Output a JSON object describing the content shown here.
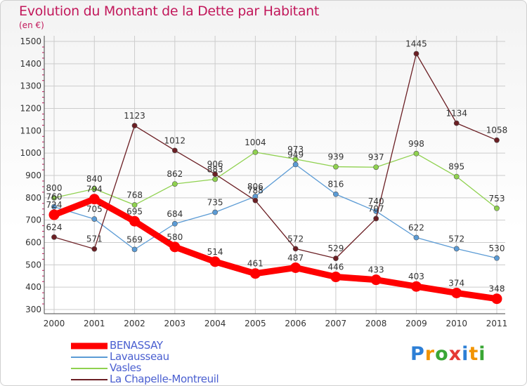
{
  "title": "Evolution du Montant de la Dette par Habitant",
  "subtitle": "(en €)",
  "logo": "Proxiti",
  "chart_data": {
    "type": "line",
    "categories": [
      "2000",
      "2001",
      "2002",
      "2003",
      "2004",
      "2005",
      "2006",
      "2007",
      "2008",
      "2009",
      "2010",
      "2011"
    ],
    "ylim": [
      300,
      1500
    ],
    "yticks": [
      300,
      400,
      500,
      600,
      700,
      800,
      900,
      1000,
      1100,
      1200,
      1300,
      1400,
      1500
    ],
    "grid": true,
    "legend": "bottom-left",
    "series": [
      {
        "name": "BENASSAY",
        "color": "#ff0000",
        "width": 9,
        "values": [
          724,
          794,
          695,
          580,
          514,
          461,
          487,
          446,
          433,
          403,
          374,
          348
        ]
      },
      {
        "name": "Lavausseau",
        "color": "#5b9bd5",
        "width": 1.3,
        "values": [
          760,
          705,
          569,
          684,
          735,
          806,
          949,
          816,
          740,
          622,
          572,
          530
        ]
      },
      {
        "name": "Vasles",
        "color": "#8fd14f",
        "width": 1.3,
        "values": [
          800,
          840,
          768,
          862,
          883,
          1004,
          973,
          939,
          937,
          998,
          895,
          753
        ]
      },
      {
        "name": "La Chapelle-Montreuil",
        "color": "#6b1f24",
        "width": 1.3,
        "values": [
          624,
          571,
          1123,
          1012,
          906,
          788,
          572,
          529,
          707,
          1445,
          1134,
          1058
        ]
      }
    ]
  }
}
